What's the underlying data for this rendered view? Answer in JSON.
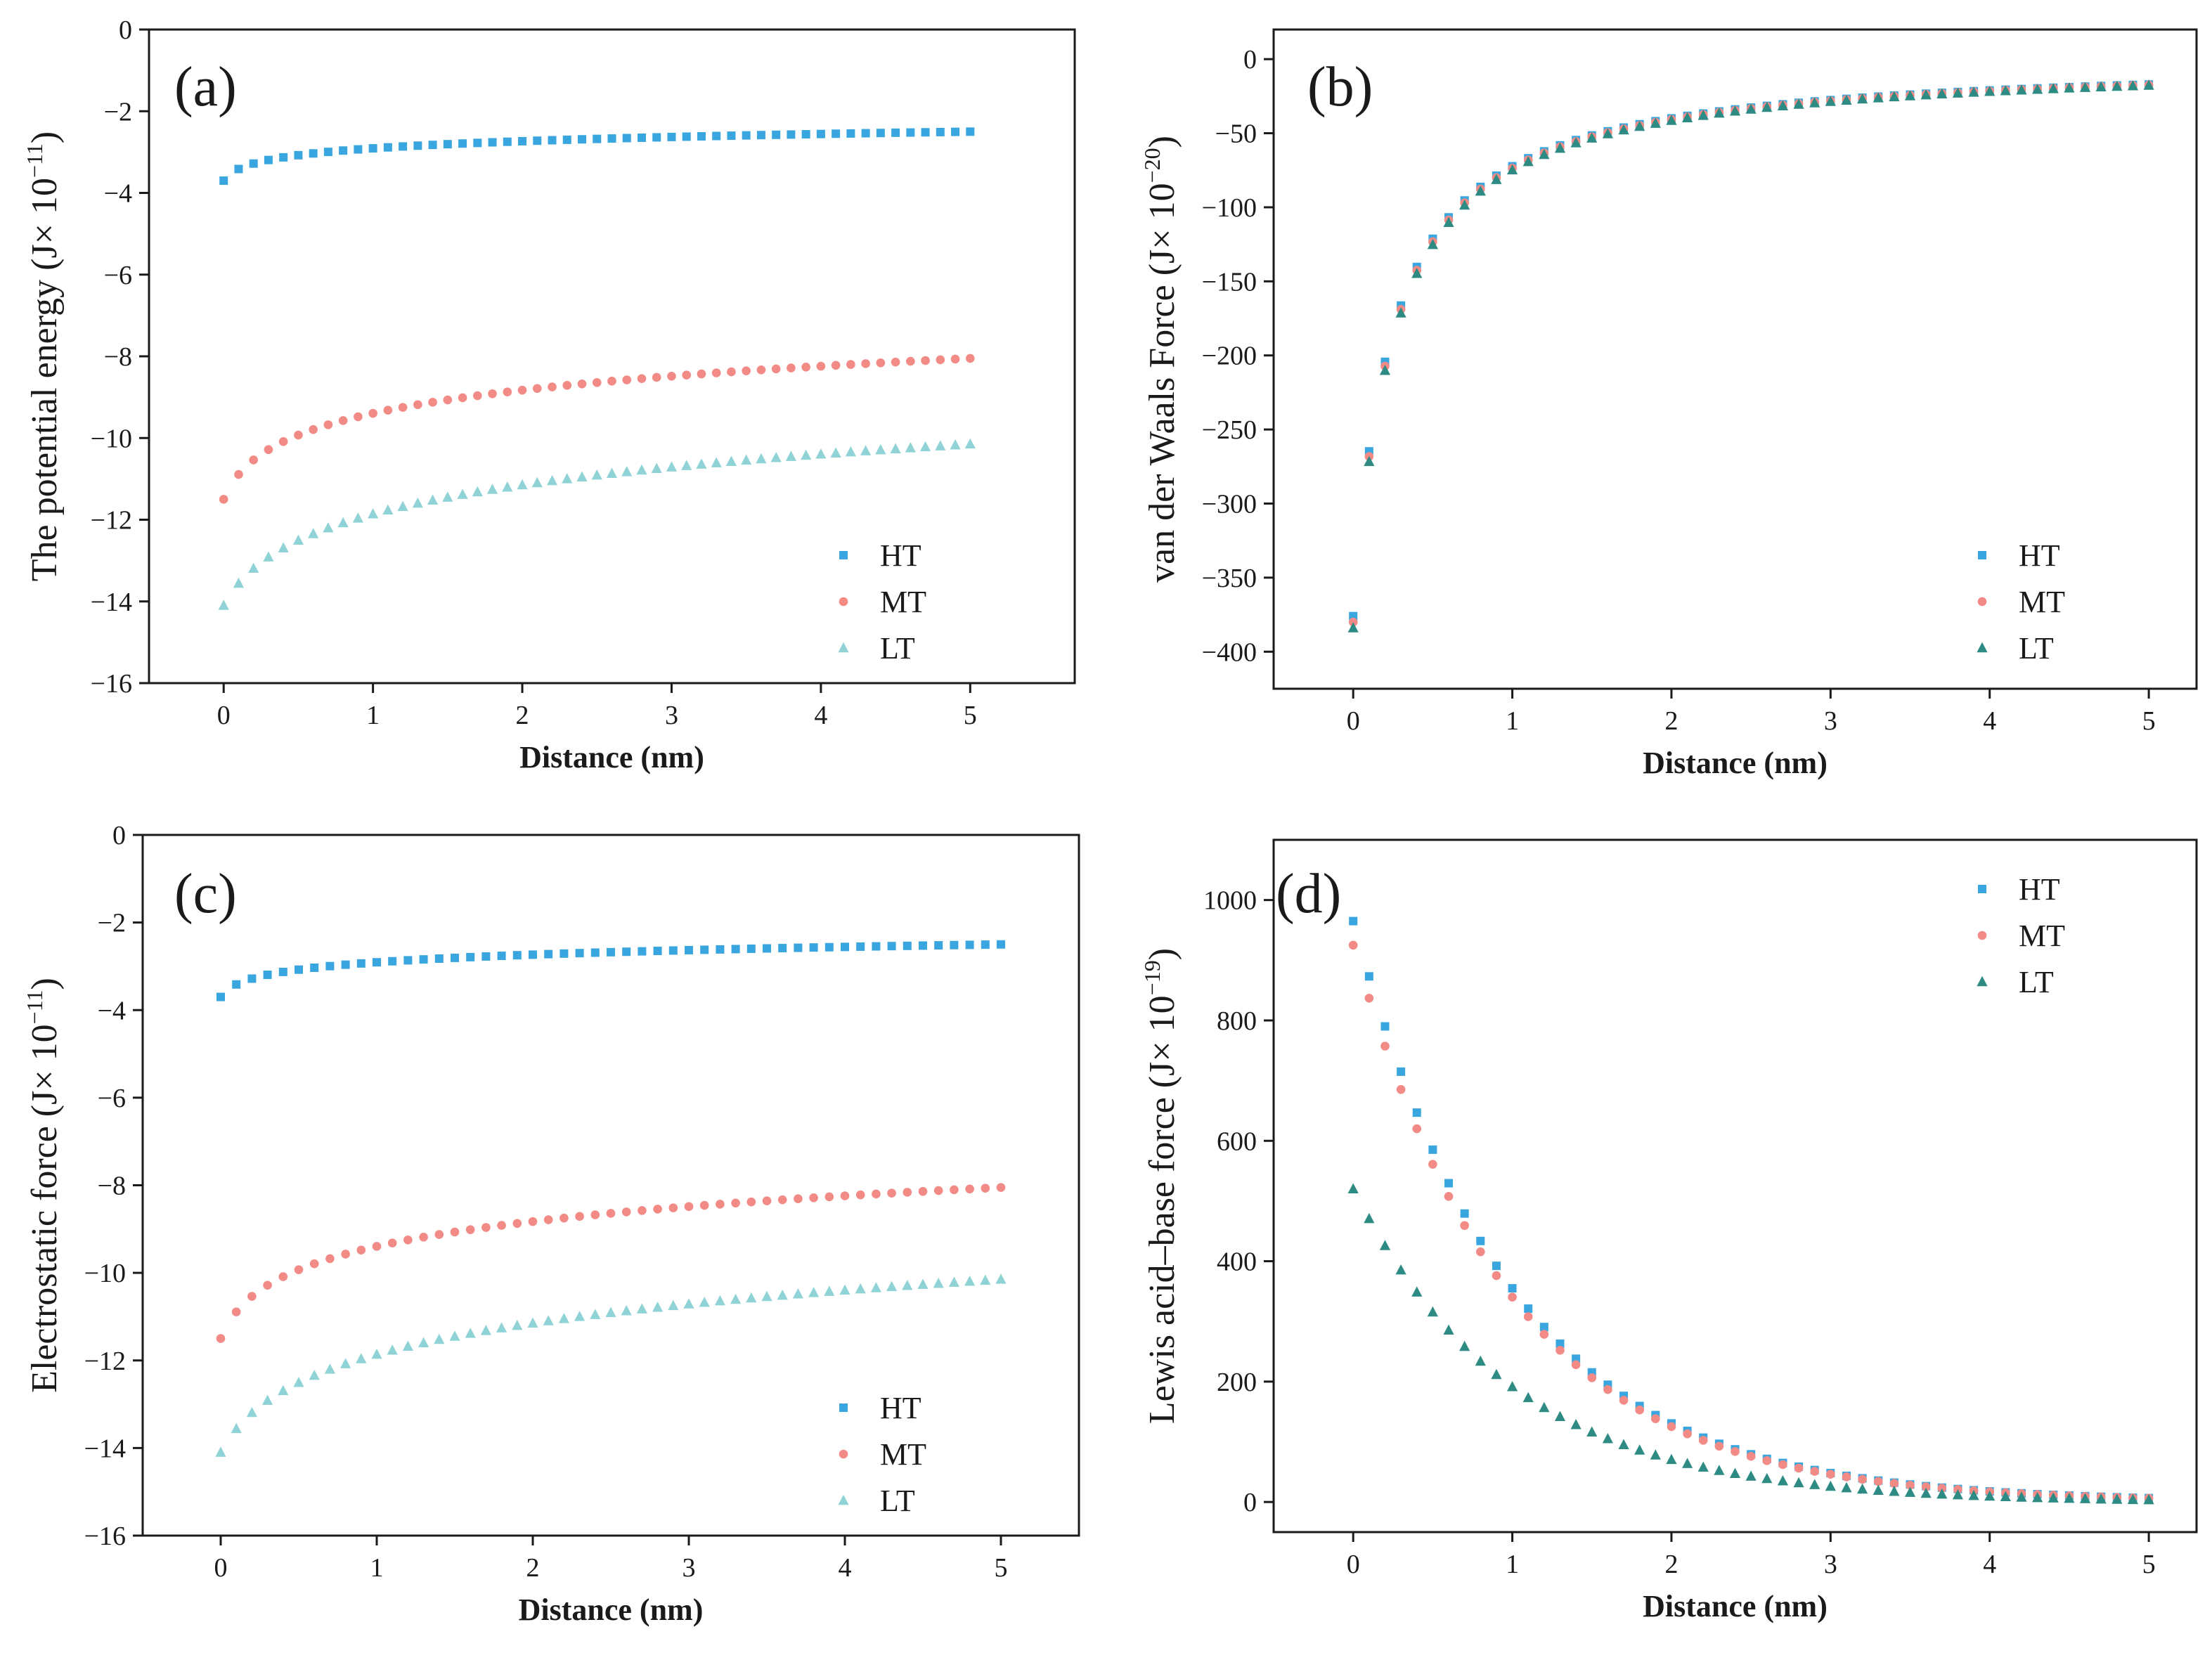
{
  "figure": {
    "colors": {
      "HT": "#3aa6df",
      "MT": "#f28a86",
      "LT_light": "#8fd3d6",
      "LT_dark": "#2e8b84",
      "axis": "#1a1a1a"
    }
  },
  "chart_data": [
    {
      "panel": "(a)",
      "type": "scatter",
      "ylabel": "The potential energy (J× 10",
      "ylabel_exp": "−11",
      "ylabel_tail": ")",
      "xlabel": "Distance (nm)",
      "xlim": [
        -0.5,
        5.7
      ],
      "ylim": [
        -16,
        0
      ],
      "xticks": [
        0,
        1,
        2,
        3,
        4,
        5
      ],
      "xtick_labels": [
        "0",
        "1",
        "2",
        "3",
        "4",
        "5"
      ],
      "yticks": [
        0,
        -2,
        -4,
        -6,
        -8,
        -10,
        -12,
        -14,
        -16
      ],
      "ytick_labels": [
        "0",
        "−2",
        "−4",
        "−6",
        "−8",
        "−10",
        "−12",
        "−14",
        "−16"
      ],
      "legend_position": "bottom-right",
      "x_start": 0,
      "x_end": 5,
      "x_step": 0.1,
      "series": [
        {
          "name": "HT",
          "marker": "square",
          "color_key": "HT",
          "model": "log",
          "a": -3.7,
          "b": -2.5,
          "k": 20
        },
        {
          "name": "MT",
          "marker": "circle",
          "color_key": "MT",
          "model": "log",
          "a": -11.5,
          "b": -8.05,
          "k": 10
        },
        {
          "name": "LT",
          "marker": "triangle",
          "color_key": "LT_light",
          "model": "log",
          "a": -14.1,
          "b": -10.15,
          "k": 6
        }
      ]
    },
    {
      "panel": "(b)",
      "type": "scatter",
      "ylabel": "van der Waals Force (J× 10",
      "ylabel_exp": "−20",
      "ylabel_tail": ")",
      "xlabel": "Distance (nm)",
      "xlim": [
        -0.5,
        5.3
      ],
      "ylim": [
        -425,
        20
      ],
      "xticks": [
        0,
        1,
        2,
        3,
        4,
        5
      ],
      "xtick_labels": [
        "0",
        "1",
        "2",
        "3",
        "4",
        "5"
      ],
      "yticks": [
        0,
        -50,
        -100,
        -150,
        -200,
        -250,
        -300,
        -350,
        -400
      ],
      "ytick_labels": [
        "0",
        "−50",
        "−100",
        "−150",
        "−200",
        "−250",
        "−300",
        "−350",
        "−400"
      ],
      "legend_position": "bottom-right",
      "x_start": 0,
      "x_end": 5,
      "x_step": 0.1,
      "series": [
        {
          "name": "HT",
          "marker": "square",
          "color_key": "HT",
          "model": "inv",
          "a": -376,
          "c": 0.238,
          "d": 0.1
        },
        {
          "name": "MT",
          "marker": "circle",
          "color_key": "MT",
          "model": "inv",
          "a": -380,
          "c": 0.24,
          "d": 0.1
        },
        {
          "name": "LT",
          "marker": "triangle",
          "color_key": "LT_dark",
          "model": "inv",
          "a": -384,
          "c": 0.242,
          "d": 0.1
        }
      ]
    },
    {
      "panel": "(c)",
      "type": "scatter",
      "ylabel": "Electrostatic force (J× 10",
      "ylabel_exp": "−11",
      "ylabel_tail": ")",
      "xlabel": "Distance (nm)",
      "xlim": [
        -0.5,
        5.5
      ],
      "ylim": [
        -16,
        0
      ],
      "xticks": [
        0,
        1,
        2,
        3,
        4,
        5
      ],
      "xtick_labels": [
        "0",
        "1",
        "2",
        "3",
        "4",
        "5"
      ],
      "yticks": [
        0,
        -2,
        -4,
        -6,
        -8,
        -10,
        -12,
        -14,
        -16
      ],
      "ytick_labels": [
        "0",
        "−2",
        "−4",
        "−6",
        "−8",
        "−10",
        "−12",
        "−14",
        "−16"
      ],
      "legend_position": "bottom-right",
      "x_start": 0,
      "x_end": 5,
      "x_step": 0.1,
      "series": [
        {
          "name": "HT",
          "marker": "square",
          "color_key": "HT",
          "model": "log",
          "a": -3.7,
          "b": -2.5,
          "k": 20
        },
        {
          "name": "MT",
          "marker": "circle",
          "color_key": "MT",
          "model": "log",
          "a": -11.5,
          "b": -8.05,
          "k": 10
        },
        {
          "name": "LT",
          "marker": "triangle",
          "color_key": "LT_light",
          "model": "log",
          "a": -14.1,
          "b": -10.15,
          "k": 6
        }
      ]
    },
    {
      "panel": "(d)",
      "type": "scatter",
      "ylabel": "Lewis acid–base force (J× 10",
      "ylabel_exp": "−19",
      "ylabel_tail": ")",
      "xlabel": "Distance (nm)",
      "xlim": [
        -0.5,
        5.3
      ],
      "ylim": [
        -50,
        1100
      ],
      "xticks": [
        0,
        1,
        2,
        3,
        4,
        5
      ],
      "xtick_labels": [
        "0",
        "1",
        "2",
        "3",
        "4",
        "5"
      ],
      "yticks": [
        0,
        200,
        400,
        600,
        800,
        1000
      ],
      "ytick_labels": [
        "0",
        "200",
        "400",
        "600",
        "800",
        "1000"
      ],
      "legend_position": "top-right",
      "x_start": 0,
      "x_end": 5,
      "x_step": 0.1,
      "series": [
        {
          "name": "HT",
          "marker": "square",
          "color_key": "HT",
          "model": "exp",
          "a": 965,
          "lambda": 1.0
        },
        {
          "name": "MT",
          "marker": "circle",
          "color_key": "MT",
          "model": "exp",
          "a": 925,
          "lambda": 1.0
        },
        {
          "name": "LT",
          "marker": "triangle",
          "color_key": "LT_dark",
          "model": "exp",
          "a": 520,
          "lambda": 1.0
        }
      ]
    }
  ]
}
